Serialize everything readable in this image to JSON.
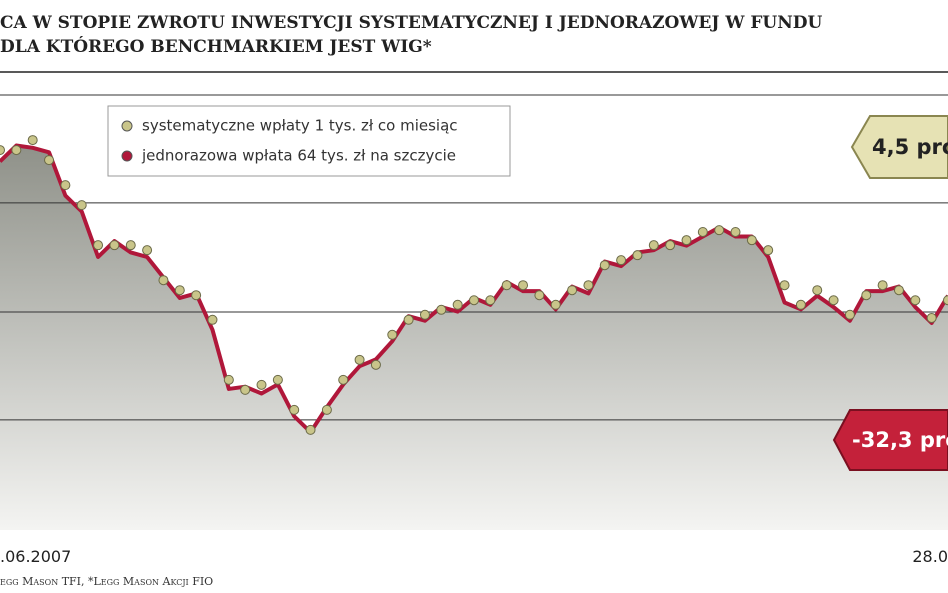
{
  "chart_data": {
    "type": "line",
    "title": "CA W STOPIE ZWROTU INWESTYCJI SYSTEMATYCZNEJ I JEDNORAZOWEJ W FUNDU",
    "subtitle": "DLA KTÓREGO BENCHMARKIEM JEST WIG*",
    "source": "egg Mason TFI, *Legg Mason Akcji FIO",
    "x_start_label": ".06.2007",
    "x_end_label": "28.0",
    "annotations": [
      "4,5 pro",
      "-32,3 pro"
    ],
    "ylim": [
      0,
      100
    ],
    "yticks": [
      24.2,
      47.9,
      71.9,
      95.6
    ],
    "grid": true,
    "series": [
      {
        "name": "systematyczne wpłaty 1 tys. zł co miesiąc",
        "color": "#c9c58a",
        "values": [
          83.5,
          83.5,
          85.7,
          81.3,
          75.8,
          71.4,
          62.6,
          62.6,
          62.6,
          61.5,
          54.9,
          52.7,
          51.6,
          46.2,
          33.0,
          30.8,
          31.9,
          33.0,
          26.4,
          22.0,
          26.4,
          33.0,
          37.4,
          36.3,
          42.9,
          46.2,
          47.3,
          48.4,
          49.5,
          50.5,
          50.5,
          53.8,
          53.8,
          51.6,
          49.5,
          52.7,
          53.8,
          58.2,
          59.3,
          60.4,
          62.6,
          62.6,
          63.7,
          65.5,
          65.9,
          65.5,
          63.7,
          61.5,
          53.8,
          49.5,
          52.7,
          50.5,
          47.3,
          51.6,
          53.8,
          52.7,
          50.5,
          46.6,
          50.5
        ]
      },
      {
        "name": "jednorazowa wpłata 64 tys. zł na szczycie",
        "color": "#b0173a",
        "values": [
          81.0,
          84.5,
          84.0,
          83.0,
          73.5,
          70.0,
          60.0,
          63.5,
          61.0,
          60.0,
          55.5,
          51.0,
          52.0,
          44.0,
          31.0,
          31.5,
          30.0,
          32.0,
          25.0,
          21.5,
          27.0,
          32.0,
          36.0,
          37.5,
          41.5,
          47.0,
          46.0,
          49.0,
          48.0,
          51.0,
          49.5,
          54.5,
          52.5,
          52.5,
          48.5,
          53.5,
          52.0,
          59.0,
          58.0,
          61.0,
          61.5,
          63.5,
          62.5,
          64.5,
          66.5,
          64.5,
          64.5,
          60.0,
          50.0,
          48.5,
          51.5,
          49.0,
          46.0,
          52.5,
          52.5,
          53.5,
          49.0,
          45.5,
          51.5
        ]
      }
    ]
  }
}
